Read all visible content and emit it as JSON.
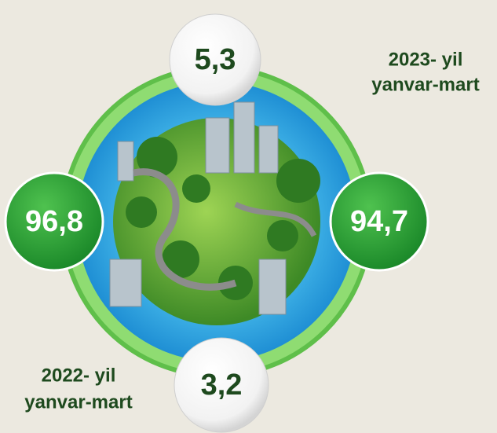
{
  "top_value": "5,3",
  "bottom_value": "3,2",
  "left_value": "96,8",
  "right_value": "94,7",
  "label_top": {
    "line1": "2023- yil",
    "line2": "yanvar-mart"
  },
  "label_bottom": {
    "line1": "2022- yil",
    "line2": "yanvar-mart"
  }
}
